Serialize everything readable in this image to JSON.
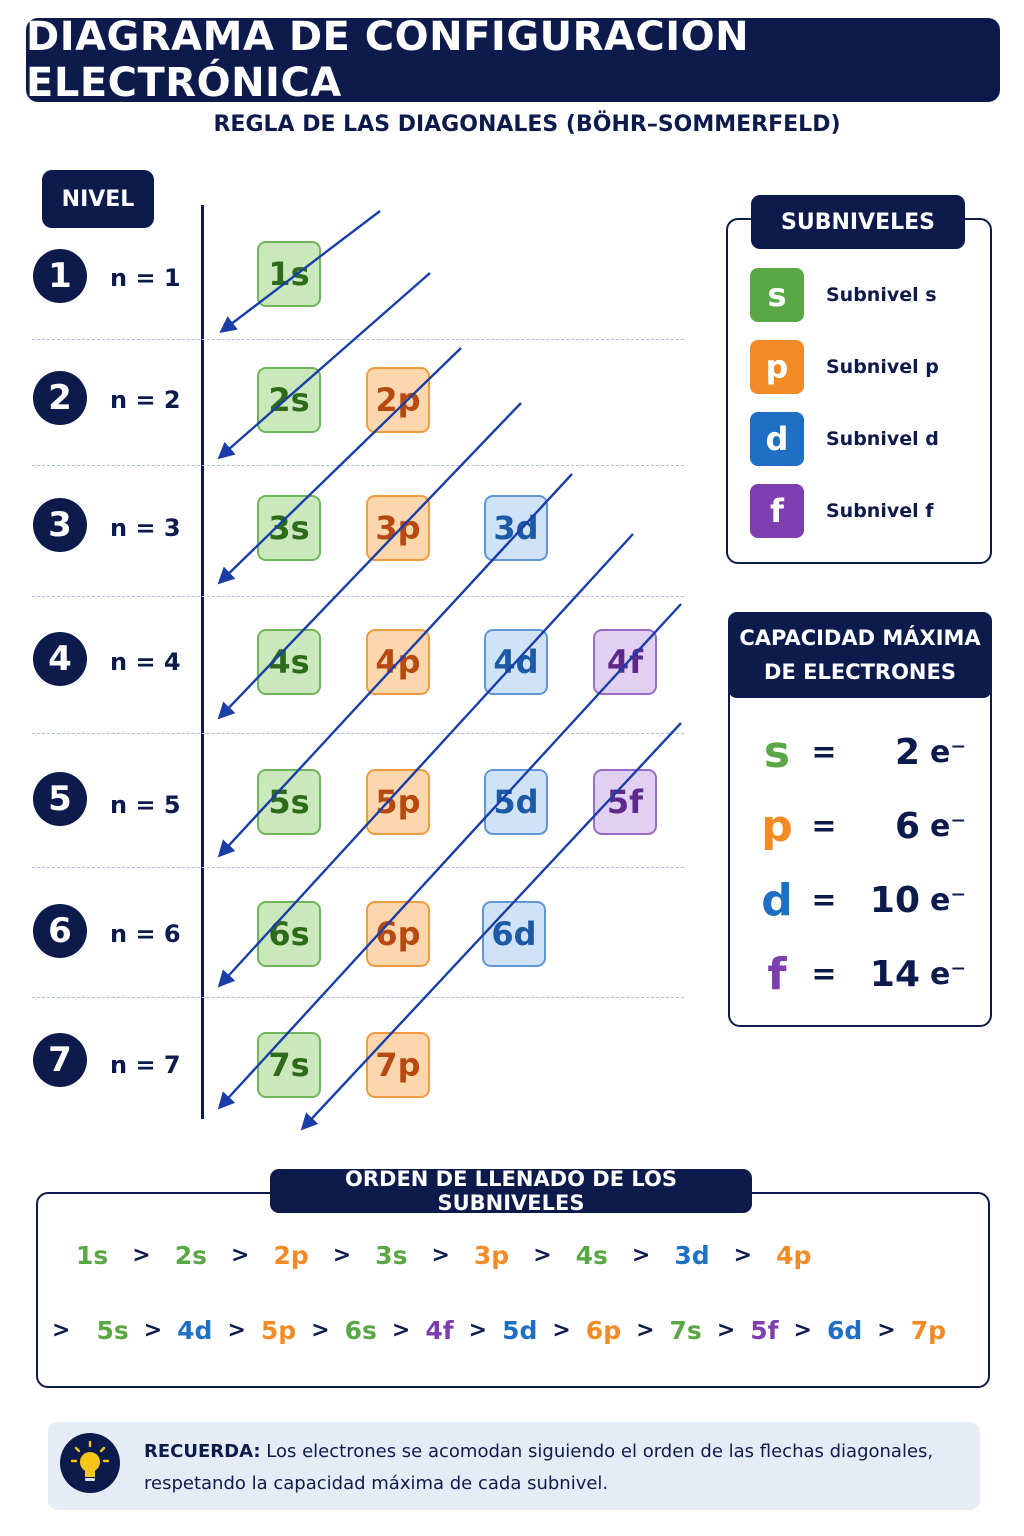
{
  "title": "DIAGRAMA DE CONFIGURACIÓN ELECTRÓNICA",
  "subtitle": "REGLA DE LAS DIAGONALES (BÖHR–SOMMERFELD)",
  "nivel_header": "NIVEL",
  "levels": [
    {
      "num": "1",
      "label": "n = 1"
    },
    {
      "num": "2",
      "label": "n = 2"
    },
    {
      "num": "3",
      "label": "n = 3"
    },
    {
      "num": "4",
      "label": "n = 4"
    },
    {
      "num": "5",
      "label": "n = 5"
    },
    {
      "num": "6",
      "label": "n = 6"
    },
    {
      "num": "7",
      "label": "n = 7"
    }
  ],
  "orbitals": {
    "1s": "1s",
    "2s": "2s",
    "2p": "2p",
    "3s": "3s",
    "3p": "3p",
    "3d": "3d",
    "4s": "4s",
    "4p": "4p",
    "4d": "4d",
    "4f": "4f",
    "5s": "5s",
    "5p": "5p",
    "5d": "5d",
    "5f": "5f",
    "6s": "6s",
    "6p": "6p",
    "6d": "6d",
    "7s": "7s",
    "7p": "7p"
  },
  "colors": {
    "navy": "#0d1b4c",
    "s": "#5aa845",
    "p": "#f28a25",
    "d": "#1f6fc4",
    "f": "#7d3fb0",
    "arrow": "#1a3ea8"
  },
  "subniveles": {
    "title": "SUBNIVELES",
    "items": [
      {
        "letter": "s",
        "label": "Subnivel s"
      },
      {
        "letter": "p",
        "label": "Subnivel p"
      },
      {
        "letter": "d",
        "label": "Subnivel d"
      },
      {
        "letter": "f",
        "label": "Subnivel f"
      }
    ]
  },
  "capacidad": {
    "title_line1": "CAPACIDAD MÁXIMA",
    "title_line2": "DE ELECTRONES",
    "eq": "=",
    "unit": "e⁻",
    "rows": [
      {
        "letter": "s",
        "value": "2"
      },
      {
        "letter": "p",
        "value": "6"
      },
      {
        "letter": "d",
        "value": "10"
      },
      {
        "letter": "f",
        "value": "14"
      }
    ]
  },
  "orden": {
    "title": "ORDEN DE LLENADO DE LOS SUBNIVELES",
    "separator": ">",
    "row1": [
      "1s",
      "2s",
      "2p",
      "3s",
      "3p",
      "4s",
      "3d",
      "4p"
    ],
    "row2": [
      "5s",
      "4d",
      "5p",
      "6s",
      "4f",
      "5d",
      "6p",
      "7s",
      "5f",
      "6d",
      "7p"
    ]
  },
  "recuerda": {
    "label": "RECUERDA:",
    "line1": " Los electrones se acomodan siguiendo el orden de las flechas diagonales,",
    "line2": "respetando la capacidad máxima de cada subnivel."
  }
}
